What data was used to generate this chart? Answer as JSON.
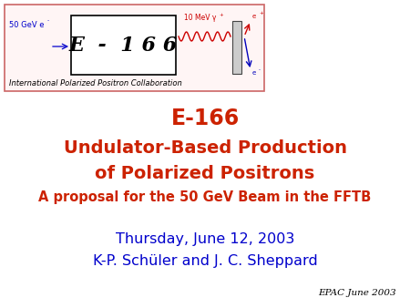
{
  "background_color": "#ffffff",
  "title_line1": "E-166",
  "title_line2": "Undulator-Based Production",
  "title_line3": "of Polarized Positrons",
  "title_line4": "A proposal for the 50 GeV Beam in the FFTB",
  "title_color": "#cc2200",
  "date_line": "Thursday, June 12, 2003",
  "author_line": "K-P. Schüler and J. C. Sheppard",
  "date_author_color": "#0000cc",
  "footer": "EPAC June 2003",
  "footer_color": "#000000",
  "logo_box_text": "E  -  1 6 6",
  "logo_box_text_color": "#000000",
  "logo_outer_border_color": "#cc6666",
  "logo_inner_border_color": "#000000",
  "logo_outer_bg": "#fff5f5",
  "logo_label_left": "50 GeV e",
  "logo_label_left_sup": "-",
  "logo_label_left_color": "#0000cc",
  "logo_label_top": "10 MeV γ",
  "logo_label_top_sup": "+",
  "logo_label_top_color": "#cc0000",
  "logo_label_eplus": "e",
  "logo_label_eplus_sup": "+",
  "logo_label_eminus": "e",
  "logo_label_eminus_sup": "-",
  "logo_collab": "International Polarized Positron Collaboration",
  "logo_collab_color": "#000000"
}
